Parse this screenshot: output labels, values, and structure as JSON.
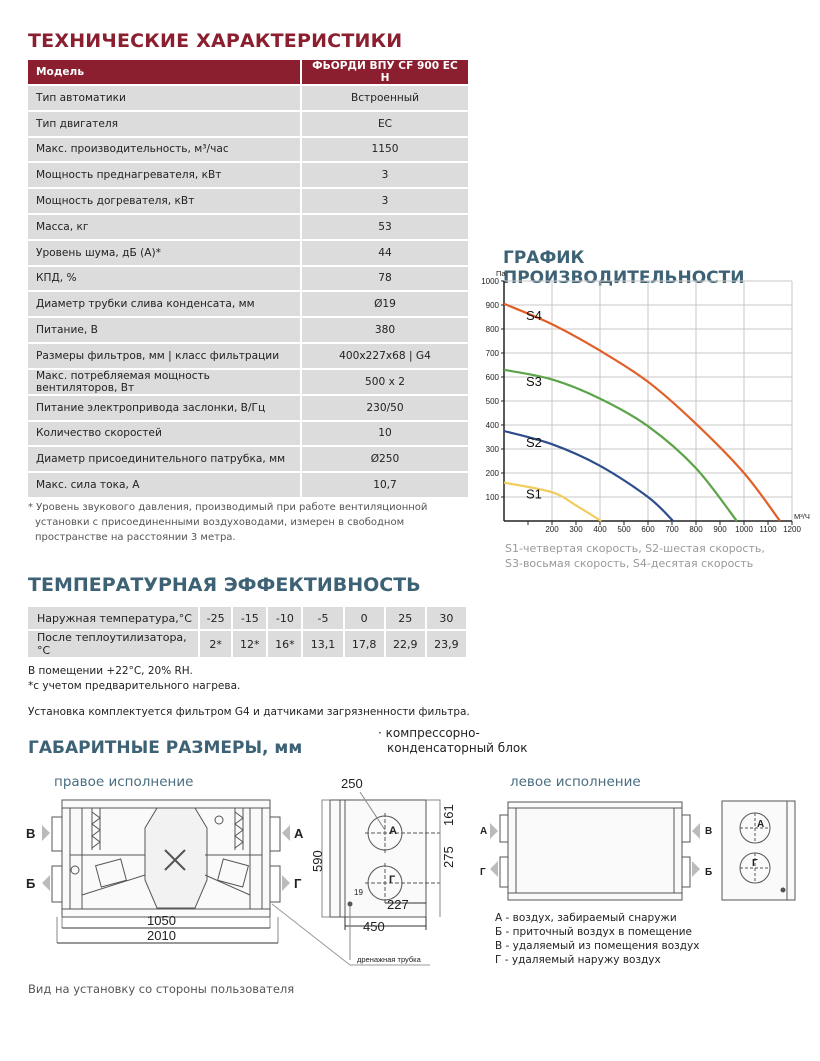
{
  "specs": {
    "title": "ТЕХНИЧЕСКИЕ ХАРАКТЕРИСТИКИ",
    "header": {
      "label": "Модель",
      "value": "ФЬОРДИ ВПУ CF 900 EC H"
    },
    "rows": [
      {
        "label": "Тип автоматики",
        "value": "Встроенный"
      },
      {
        "label": "Тип двигателя",
        "value": "EC"
      },
      {
        "label": "Макс. производительность, м³/час",
        "value": "1150"
      },
      {
        "label": "Мощность преднагревателя, кВт",
        "value": "3"
      },
      {
        "label": "Мощность догревателя, кВт",
        "value": "3"
      },
      {
        "label": "Масса, кг",
        "value": "53"
      },
      {
        "label": "Уровень шума, дБ (А)*",
        "value": "44"
      },
      {
        "label": "КПД, %",
        "value": "78"
      },
      {
        "label": "Диаметр трубки слива конденсата, мм",
        "value": "Ø19"
      },
      {
        "label": "Питание, В",
        "value": "380"
      },
      {
        "label": "Размеры фильтров, мм  |  класс фильтрации",
        "value": "400x227x68  |  G4"
      },
      {
        "label": "Макс.  потребляемая мощность вентиляторов, Вт",
        "value": "500 x 2"
      },
      {
        "label": "Питание электропривода заслонки, В/Гц",
        "value": "230/50"
      },
      {
        "label": "Количество скоростей",
        "value": "10"
      },
      {
        "label": "Диаметр присоединительного патрубка, мм",
        "value": "Ø250"
      },
      {
        "label": "Макс. сила тока, А",
        "value": "10,7"
      }
    ],
    "footnote": [
      "* Уровень звукового давления, производимый при работе вентиляционной",
      "установки с присоединенными воздуховодами, измерен в свободном",
      "пространстве на расстоянии 3 метра."
    ]
  },
  "chart_data": {
    "type": "line",
    "title": "ГРАФИК ПРОИЗВОДИТЕЛЬНОСТИ",
    "xlabel": "М³/Ч",
    "ylabel": "Па",
    "xlim": [
      0,
      1200
    ],
    "ylim": [
      0,
      1000
    ],
    "xticks": [
      100,
      200,
      300,
      400,
      500,
      600,
      700,
      800,
      900,
      1000,
      1100,
      1200
    ],
    "xticklabels": [
      "",
      "200",
      "300",
      "400",
      "500",
      "600",
      "700",
      "800",
      "900",
      "1000",
      "1100",
      "1200"
    ],
    "yticks": [
      100,
      200,
      300,
      400,
      500,
      600,
      700,
      800,
      900,
      1000
    ],
    "grid": true,
    "series": [
      {
        "name": "S4",
        "color": "#e0602a",
        "x": [
          0,
          200,
          400,
          600,
          800,
          1000,
          1150
        ],
        "y": [
          905,
          820,
          710,
          580,
          405,
          200,
          0
        ]
      },
      {
        "name": "S3",
        "color": "#5ba548",
        "x": [
          0,
          200,
          400,
          600,
          800,
          970
        ],
        "y": [
          630,
          590,
          510,
          395,
          220,
          0
        ]
      },
      {
        "name": "S2",
        "color": "#2e4d8c",
        "x": [
          0,
          200,
          400,
          600,
          705
        ],
        "y": [
          375,
          320,
          230,
          100,
          0
        ]
      },
      {
        "name": "S1",
        "color": "#f2cd5e",
        "x": [
          0,
          200,
          300,
          405
        ],
        "y": [
          160,
          120,
          65,
          0
        ]
      }
    ],
    "caption": [
      "S1-четвертая скорость, S2-шестая скорость,",
      "S3-восьмая скорость, S4-десятая скорость"
    ]
  },
  "temperature": {
    "title": "ТЕМПЕРАТУРНАЯ ЭФФЕКТИВНОСТЬ",
    "rows": [
      {
        "label": "Наружная температура,°С",
        "values": [
          "-25",
          "-15",
          "-10",
          "-5",
          "0",
          "25",
          "30"
        ]
      },
      {
        "label": "После теплоутилизатора,°С",
        "values": [
          "2*",
          "12*",
          "16*",
          "13,1",
          "17,8",
          "22,9",
          "23,9"
        ]
      }
    ],
    "notes": [
      "В помещении +22°С, 20% RH.",
      "*с учетом предварительного нагрева.",
      "Установка комплектуется фильтром G4 и датчиками загрязненности фильтра."
    ]
  },
  "dimensions": {
    "title": "ГАБАРИТНЫЕ РАЗМЕРЫ, мм",
    "compressor_note": [
      "· компрессорно-",
      "конденсаторный блок"
    ],
    "right_label": "правое исполнение",
    "left_label": "левое исполнение",
    "ports": {
      "a": "А",
      "b": "Б",
      "v": "В",
      "g": "Г"
    },
    "dims": {
      "inner": "1050",
      "total": "2010",
      "d250": "250",
      "d590": "590",
      "d161": "161",
      "d275": "275",
      "d19": "19",
      "d227": "227",
      "d450": "450",
      "drain": "дренажная трубка"
    },
    "legend": [
      "А - воздух, забираемый снаружи",
      "Б - приточный воздух в помещение",
      "В - удаляемый из помещения воздух",
      "Г - удаляемый наружу воздух"
    ],
    "view_note": "Вид на установку со стороны пользователя"
  }
}
